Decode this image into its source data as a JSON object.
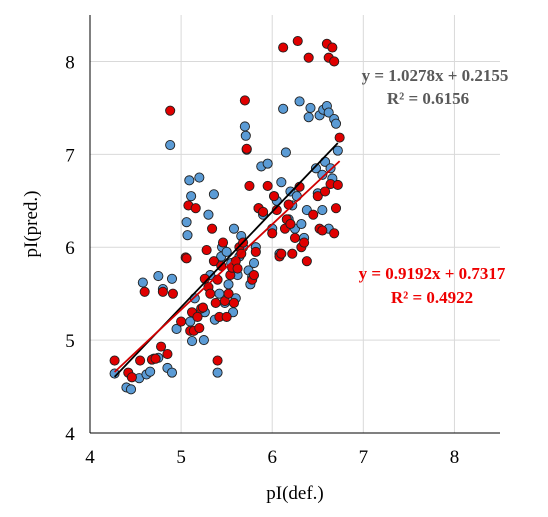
{
  "chart_data": {
    "type": "scatter",
    "xlabel": "pI(def.)",
    "ylabel": "pI(pred.)",
    "xlim": [
      4,
      8.5
    ],
    "ylim": [
      4,
      8.5
    ],
    "x_ticks": [
      4,
      5,
      6,
      7,
      8
    ],
    "y_ticks": [
      4,
      5,
      6,
      7,
      8
    ],
    "grid": true,
    "colors": {
      "series_1": "#5b9bd5",
      "series_2": "#e00000",
      "fit_1": "#000000",
      "fit_2": "#d00000",
      "eq_1": "#595959",
      "eq_2": "#ee0000"
    },
    "series": [
      {
        "fit": {
          "slope": 1.0278,
          "intercept": 0.2155
        },
        "equation": "y = 1.0278x + 0.2155",
        "r2_text": "R² = 0.6156",
        "points": [
          [
            4.27,
            4.64
          ],
          [
            4.4,
            4.49
          ],
          [
            4.45,
            4.47
          ],
          [
            4.54,
            4.59
          ],
          [
            4.62,
            4.63
          ],
          [
            4.66,
            4.66
          ],
          [
            4.7,
            4.8
          ],
          [
            4.75,
            4.81
          ],
          [
            4.85,
            4.7
          ],
          [
            4.9,
            4.65
          ],
          [
            4.58,
            5.62
          ],
          [
            4.75,
            5.69
          ],
          [
            4.8,
            5.55
          ],
          [
            4.9,
            5.66
          ],
          [
            4.95,
            5.12
          ],
          [
            4.88,
            7.1
          ],
          [
            5.06,
            6.27
          ],
          [
            5.07,
            6.13
          ],
          [
            5.09,
            6.72
          ],
          [
            5.11,
            6.55
          ],
          [
            5.1,
            5.2
          ],
          [
            5.15,
            5.45
          ],
          [
            5.12,
            4.99
          ],
          [
            5.2,
            6.75
          ],
          [
            5.25,
            5.0
          ],
          [
            5.26,
            5.3
          ],
          [
            5.3,
            6.35
          ],
          [
            5.32,
            5.7
          ],
          [
            5.36,
            6.57
          ],
          [
            5.37,
            5.22
          ],
          [
            5.4,
            4.65
          ],
          [
            5.42,
            5.5
          ],
          [
            5.44,
            5.9
          ],
          [
            5.45,
            6.0
          ],
          [
            5.48,
            5.4
          ],
          [
            5.5,
            5.95
          ],
          [
            5.52,
            5.6
          ],
          [
            5.55,
            5.83
          ],
          [
            5.57,
            5.3
          ],
          [
            5.58,
            6.2
          ],
          [
            5.6,
            5.45
          ],
          [
            5.62,
            5.7
          ],
          [
            5.64,
            5.9
          ],
          [
            5.66,
            6.12
          ],
          [
            5.68,
            6.0
          ],
          [
            5.7,
            7.3
          ],
          [
            5.71,
            7.2
          ],
          [
            5.72,
            7.05
          ],
          [
            5.74,
            5.75
          ],
          [
            5.76,
            5.6
          ],
          [
            5.78,
            5.68
          ],
          [
            5.8,
            5.83
          ],
          [
            5.82,
            6.0
          ],
          [
            5.85,
            6.42
          ],
          [
            5.88,
            6.87
          ],
          [
            5.9,
            6.35
          ],
          [
            5.95,
            6.9
          ],
          [
            6.0,
            6.2
          ],
          [
            6.02,
            6.55
          ],
          [
            6.05,
            6.5
          ],
          [
            6.08,
            5.93
          ],
          [
            6.1,
            6.7
          ],
          [
            6.12,
            7.49
          ],
          [
            6.15,
            7.02
          ],
          [
            6.18,
            6.3
          ],
          [
            6.2,
            6.6
          ],
          [
            6.22,
            6.45
          ],
          [
            6.25,
            6.2
          ],
          [
            6.27,
            6.55
          ],
          [
            6.3,
            7.57
          ],
          [
            6.32,
            6.25
          ],
          [
            6.35,
            6.1
          ],
          [
            6.38,
            6.4
          ],
          [
            6.4,
            7.4
          ],
          [
            6.42,
            7.5
          ],
          [
            6.48,
            6.85
          ],
          [
            6.5,
            6.58
          ],
          [
            6.52,
            7.42
          ],
          [
            6.55,
            6.78
          ],
          [
            6.56,
            7.48
          ],
          [
            6.58,
            6.92
          ],
          [
            6.6,
            7.52
          ],
          [
            6.62,
            7.45
          ],
          [
            6.64,
            6.85
          ],
          [
            6.66,
            6.74
          ],
          [
            6.68,
            7.38
          ],
          [
            6.7,
            7.33
          ],
          [
            6.72,
            7.04
          ],
          [
            6.55,
            6.4
          ],
          [
            6.62,
            6.2
          ]
        ]
      },
      {
        "fit": {
          "slope": 0.9192,
          "intercept": 0.7317
        },
        "equation": "y = 0.9192x + 0.7317",
        "r2_text": "R² = 0.4922",
        "points": [
          [
            4.27,
            4.78
          ],
          [
            4.42,
            4.65
          ],
          [
            4.46,
            4.6
          ],
          [
            4.55,
            4.78
          ],
          [
            4.6,
            5.52
          ],
          [
            4.68,
            4.79
          ],
          [
            4.72,
            4.8
          ],
          [
            4.78,
            4.93
          ],
          [
            4.8,
            5.52
          ],
          [
            4.85,
            4.85
          ],
          [
            4.88,
            7.47
          ],
          [
            4.91,
            5.5
          ],
          [
            5.0,
            5.2
          ],
          [
            5.05,
            5.89
          ],
          [
            5.06,
            5.88
          ],
          [
            5.08,
            6.45
          ],
          [
            5.1,
            5.1
          ],
          [
            5.12,
            5.3
          ],
          [
            5.14,
            5.1
          ],
          [
            5.16,
            6.42
          ],
          [
            5.18,
            5.25
          ],
          [
            5.2,
            5.13
          ],
          [
            5.22,
            5.34
          ],
          [
            5.24,
            5.35
          ],
          [
            5.26,
            5.66
          ],
          [
            5.28,
            5.97
          ],
          [
            5.3,
            5.57
          ],
          [
            5.32,
            5.5
          ],
          [
            5.34,
            6.2
          ],
          [
            5.36,
            5.85
          ],
          [
            5.38,
            5.4
          ],
          [
            5.4,
            5.65
          ],
          [
            5.42,
            5.25
          ],
          [
            5.44,
            5.8
          ],
          [
            5.46,
            6.05
          ],
          [
            5.48,
            5.42
          ],
          [
            5.5,
            5.25
          ],
          [
            5.52,
            5.5
          ],
          [
            5.54,
            5.7
          ],
          [
            5.56,
            5.78
          ],
          [
            5.58,
            5.4
          ],
          [
            5.6,
            5.85
          ],
          [
            5.62,
            5.77
          ],
          [
            5.64,
            6.0
          ],
          [
            5.66,
            5.93
          ],
          [
            5.68,
            6.05
          ],
          [
            5.7,
            7.58
          ],
          [
            5.72,
            7.06
          ],
          [
            5.75,
            6.66
          ],
          [
            5.78,
            5.65
          ],
          [
            5.8,
            5.7
          ],
          [
            5.82,
            5.95
          ],
          [
            5.85,
            6.42
          ],
          [
            5.9,
            6.38
          ],
          [
            5.95,
            6.66
          ],
          [
            6.0,
            6.15
          ],
          [
            6.02,
            6.55
          ],
          [
            6.05,
            6.4
          ],
          [
            6.08,
            5.9
          ],
          [
            6.1,
            5.93
          ],
          [
            6.12,
            8.15
          ],
          [
            6.14,
            6.2
          ],
          [
            6.16,
            6.3
          ],
          [
            6.18,
            6.46
          ],
          [
            6.2,
            6.25
          ],
          [
            6.22,
            5.93
          ],
          [
            6.25,
            6.1
          ],
          [
            6.28,
            8.22
          ],
          [
            6.3,
            6.65
          ],
          [
            6.32,
            6.0
          ],
          [
            6.35,
            6.05
          ],
          [
            6.38,
            5.85
          ],
          [
            6.4,
            8.04
          ],
          [
            6.45,
            6.35
          ],
          [
            6.5,
            6.55
          ],
          [
            6.52,
            6.2
          ],
          [
            6.55,
            6.18
          ],
          [
            6.58,
            6.6
          ],
          [
            6.6,
            8.19
          ],
          [
            6.62,
            8.04
          ],
          [
            6.64,
            6.68
          ],
          [
            6.66,
            8.15
          ],
          [
            6.68,
            8.0
          ],
          [
            6.7,
            6.42
          ],
          [
            6.72,
            6.67
          ],
          [
            6.74,
            7.18
          ],
          [
            6.68,
            6.15
          ],
          [
            5.4,
            4.78
          ]
        ]
      }
    ]
  }
}
